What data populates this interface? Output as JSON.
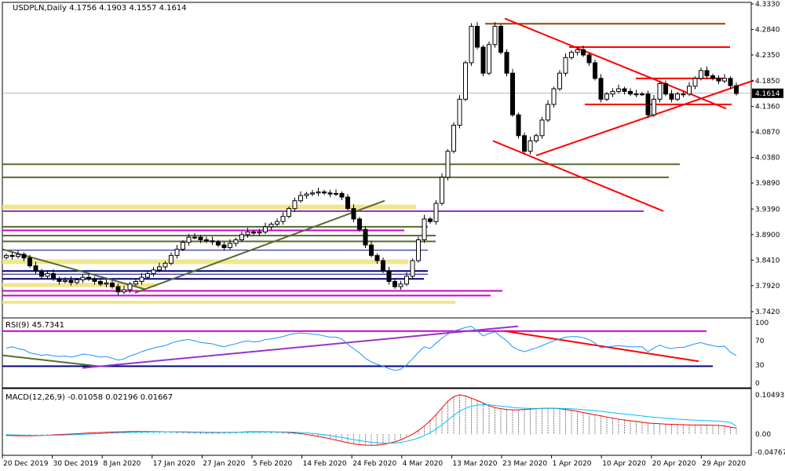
{
  "header": {
    "symbol": "USDPLN,Daily",
    "ohlc": "4.1756 4.1903 4.1557 4.1614"
  },
  "rsi": {
    "title": "RSI(9) 45.7341",
    "levels": [
      "100",
      "70",
      "30",
      "0"
    ]
  },
  "macd": {
    "title": "MACD(12,26,9) -0.01058 0.02196 0.01667",
    "levels": [
      "0.10493",
      "0.00",
      "-0.04767"
    ]
  },
  "colors": {
    "bull_body": "#ffffff",
    "bear_body": "#000000",
    "trend": "#ff0000",
    "rsi": "#1e90ff",
    "macd": "#ff0000",
    "signal": "#00bfff"
  },
  "chart_data": [
    {
      "type": "candlestick",
      "title": "USDPLN,Daily",
      "ylim": [
        3.742,
        4.333
      ],
      "y_ticks": [
        "4.3330",
        "4.2840",
        "4.2350",
        "4.1850",
        "4.1360",
        "4.0870",
        "4.0380",
        "3.9890",
        "3.9390",
        "3.8900",
        "3.8410",
        "3.7920",
        "3.7420"
      ],
      "last_price": "4.1614",
      "x_ticks": [
        "20 Dec 2019",
        "30 Dec 2019",
        "8 Jan 2020",
        "17 Jan 2020",
        "27 Jan 2020",
        "5 Feb 2020",
        "14 Feb 2020",
        "24 Feb 2020",
        "4 Mar 2020",
        "13 Mar 2020",
        "23 Mar 2020",
        "1 Apr 2020",
        "10 Apr 2020",
        "20 Apr 2020",
        "29 Apr 2020"
      ],
      "close": [
        3.85,
        3.848,
        3.852,
        3.845,
        3.83,
        3.82,
        3.81,
        3.815,
        3.805,
        3.8,
        3.802,
        3.798,
        3.803,
        3.808,
        3.805,
        3.8,
        3.795,
        3.797,
        3.79,
        3.78,
        3.784,
        3.795,
        3.8,
        3.808,
        3.815,
        3.822,
        3.828,
        3.835,
        3.85,
        3.862,
        3.875,
        3.885,
        3.885,
        3.88,
        3.878,
        3.876,
        3.87,
        3.865,
        3.873,
        3.88,
        3.89,
        3.895,
        3.893,
        3.895,
        3.905,
        3.91,
        3.915,
        3.925,
        3.94,
        3.955,
        3.965,
        3.968,
        3.97,
        3.972,
        3.97,
        3.968,
        3.969,
        3.962,
        3.94,
        3.92,
        3.9,
        3.87,
        3.85,
        3.84,
        3.82,
        3.8,
        3.79,
        3.795,
        3.81,
        3.84,
        3.88,
        3.92,
        3.915,
        3.95,
        4.0,
        4.05,
        4.1,
        4.15,
        4.22,
        4.29,
        4.25,
        4.2,
        4.255,
        4.29,
        4.24,
        4.2,
        4.12,
        4.08,
        4.05,
        4.07,
        4.08,
        4.11,
        4.14,
        4.17,
        4.2,
        4.23,
        4.24,
        4.245,
        4.235,
        4.22,
        4.19,
        4.15,
        4.16,
        4.165,
        4.17,
        4.165,
        4.16,
        4.16,
        4.16,
        4.12,
        4.15,
        4.18,
        4.16,
        4.15,
        4.16,
        4.16,
        4.175,
        4.19,
        4.205,
        4.195,
        4.19,
        4.185,
        4.19,
        4.176,
        4.161
      ]
    },
    {
      "type": "line",
      "title": "RSI(9) 45.7341",
      "ylim": [
        0,
        100
      ],
      "levels": [
        70,
        30
      ],
      "values": [
        58,
        60,
        57,
        55,
        50,
        48,
        46,
        47,
        45,
        44,
        45,
        43,
        45,
        48,
        47,
        45,
        43,
        44,
        41,
        38,
        40,
        45,
        48,
        52,
        55,
        58,
        60,
        62,
        66,
        69,
        71,
        72,
        70,
        67,
        66,
        65,
        62,
        60,
        63,
        65,
        68,
        70,
        68,
        69,
        72,
        73,
        75,
        77,
        80,
        82,
        83,
        82,
        81,
        80,
        78,
        76,
        76,
        73,
        64,
        57,
        50,
        41,
        35,
        31,
        28,
        24,
        21,
        23,
        30,
        40,
        51,
        60,
        57,
        66,
        74,
        81,
        86,
        89,
        92,
        94,
        86,
        78,
        82,
        85,
        77,
        70,
        60,
        55,
        52,
        55,
        58,
        62,
        66,
        70,
        73,
        76,
        77,
        77,
        75,
        72,
        66,
        58,
        60,
        61,
        62,
        61,
        60,
        60,
        60,
        52,
        58,
        63,
        59,
        57,
        59,
        59,
        62,
        65,
        67,
        64,
        62,
        60,
        61,
        51,
        45.73
      ]
    },
    {
      "type": "bar",
      "title": "MACD(12,26,9) -0.01058 0.02196 0.01667",
      "ylim": [
        -0.04767,
        0.10493
      ],
      "series": [
        {
          "name": "MACD",
          "values": [
            -0.0033,
            -0.0036,
            -0.004,
            -0.0041,
            -0.004,
            -0.0037,
            -0.0032,
            -0.0026,
            -0.0018,
            -0.001,
            -0.0002,
            0.0006,
            0.0015,
            0.0024,
            0.0032,
            0.004,
            0.0047,
            0.0053,
            0.0059,
            0.0064,
            0.0068,
            0.0071,
            0.0073,
            0.0073,
            0.0073,
            0.0072,
            0.007,
            0.0068,
            0.0065,
            0.0062,
            0.0058,
            0.0055,
            0.0052,
            0.005,
            0.0048,
            0.0047,
            0.0047,
            0.0048,
            0.0051,
            0.0055,
            0.0059,
            0.0063,
            0.0066,
            0.0067,
            0.0066,
            0.0064,
            0.006,
            0.0054,
            0.0045,
            0.0033,
            0.0016,
            -0.0005,
            -0.003,
            -0.0058,
            -0.0088,
            -0.012,
            -0.0155,
            -0.019,
            -0.0225,
            -0.0255,
            -0.0275,
            -0.029,
            -0.0295,
            -0.029,
            -0.027,
            -0.024,
            -0.02,
            -0.015,
            -0.008,
            0.0,
            0.01,
            0.022,
            0.036,
            0.052,
            0.07,
            0.088,
            0.1,
            0.1049,
            0.102,
            0.096,
            0.09,
            0.083,
            0.076,
            0.071,
            0.068,
            0.066,
            0.065,
            0.065,
            0.066,
            0.067,
            0.068,
            0.069,
            0.0695,
            0.0692,
            0.068,
            0.066,
            0.064,
            0.061,
            0.058,
            0.055,
            0.052,
            0.049,
            0.046,
            0.043,
            0.04,
            0.038,
            0.036,
            0.034,
            0.032,
            0.03,
            0.029,
            0.028,
            0.027,
            0.0265,
            0.026,
            0.0255,
            0.025,
            0.0248,
            0.0246,
            0.0244,
            0.024,
            0.0236,
            0.022,
            0.019,
            0.0167
          ]
        },
        {
          "name": "Signal",
          "values": [
            -0.001,
            -0.0016,
            -0.0021,
            -0.0025,
            -0.0028,
            -0.003,
            -0.0031,
            -0.003,
            -0.0027,
            -0.0024,
            -0.0019,
            -0.0014,
            -0.0008,
            -0.0002,
            0.0005,
            0.0012,
            0.0019,
            0.0026,
            0.0032,
            0.0038,
            0.0044,
            0.0049,
            0.0054,
            0.0058,
            0.0061,
            0.0063,
            0.0065,
            0.0066,
            0.0066,
            0.0065,
            0.0064,
            0.0062,
            0.006,
            0.0058,
            0.0056,
            0.0054,
            0.0053,
            0.0052,
            0.0052,
            0.0053,
            0.0054,
            0.0056,
            0.0058,
            0.006,
            0.0061,
            0.0062,
            0.0062,
            0.0061,
            0.0058,
            0.0053,
            0.0046,
            0.0036,
            0.0023,
            0.0007,
            -0.0012,
            -0.0034,
            -0.0058,
            -0.0085,
            -0.0113,
            -0.0141,
            -0.0168,
            -0.0192,
            -0.0213,
            -0.0228,
            -0.0237,
            -0.0238,
            -0.0231,
            -0.0215,
            -0.0188,
            -0.015,
            -0.01,
            -0.0036,
            0.0043,
            0.0138,
            0.025,
            0.0376,
            0.0501,
            0.0611,
            0.0693,
            0.0746,
            0.0777,
            0.0788,
            0.0782,
            0.0768,
            0.075,
            0.0732,
            0.0716,
            0.0703,
            0.0694,
            0.0689,
            0.0687,
            0.0688,
            0.0689,
            0.0689,
            0.0688,
            0.0683,
            0.0677,
            0.0667,
            0.0656,
            0.0642,
            0.0626,
            0.061,
            0.0592,
            0.0574,
            0.0555,
            0.0537,
            0.0521,
            0.0505,
            0.0488,
            0.047,
            0.0454,
            0.044,
            0.0427,
            0.0414,
            0.0402,
            0.0393,
            0.0384,
            0.0376,
            0.0369,
            0.0362,
            0.0356,
            0.0349,
            0.0336,
            0.0312,
            0.022
          ]
        }
      ]
    }
  ]
}
